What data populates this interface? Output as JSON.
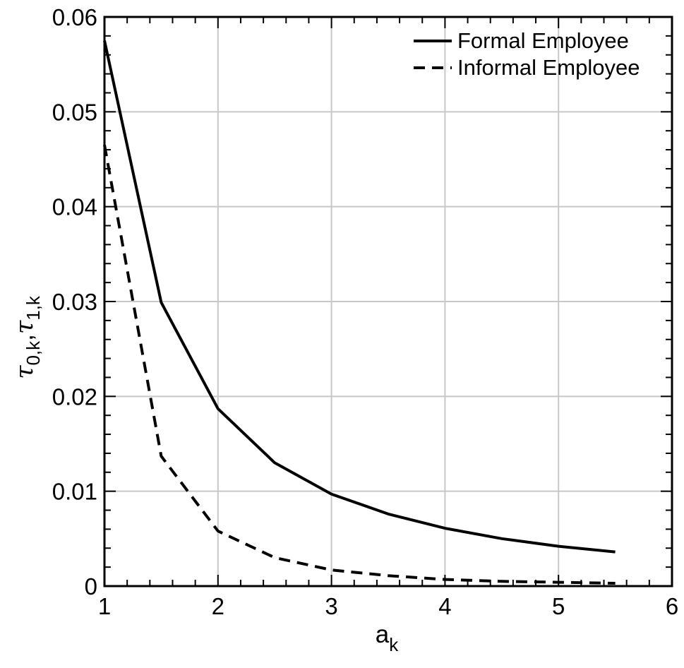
{
  "chart_data": {
    "type": "line",
    "xlabel": "a",
    "xlabel_sub": "k",
    "ylabel": {
      "sym": "τ",
      "sub0": "0,k",
      "comma": ",",
      "sub1": "1,k"
    },
    "xlim": [
      1,
      6
    ],
    "ylim": [
      0,
      0.06
    ],
    "x_ticks": [
      "1",
      "2",
      "3",
      "4",
      "5",
      "6"
    ],
    "y_ticks": [
      "0",
      "0.01",
      "0.02",
      "0.03",
      "0.04",
      "0.05",
      "0.06"
    ],
    "grid": true,
    "legend_position": "top-right",
    "series": [
      {
        "name": "Formal Employee",
        "style": "solid",
        "color": "#000000",
        "x": [
          1,
          1.5,
          2,
          2.5,
          3,
          3.5,
          4,
          4.5,
          5,
          5.5
        ],
        "y": [
          0.0575,
          0.0299,
          0.0187,
          0.013,
          0.0097,
          0.0076,
          0.0061,
          0.005,
          0.0042,
          0.0036
        ]
      },
      {
        "name": "Informal Employee",
        "style": "dashed",
        "color": "#000000",
        "x": [
          1,
          1.5,
          2,
          2.5,
          3,
          3.5,
          4,
          4.5,
          5,
          5.5
        ],
        "y": [
          0.0465,
          0.0137,
          0.0058,
          0.003,
          0.0017,
          0.0011,
          0.0007,
          0.0005,
          0.0004,
          0.0003
        ]
      }
    ]
  }
}
